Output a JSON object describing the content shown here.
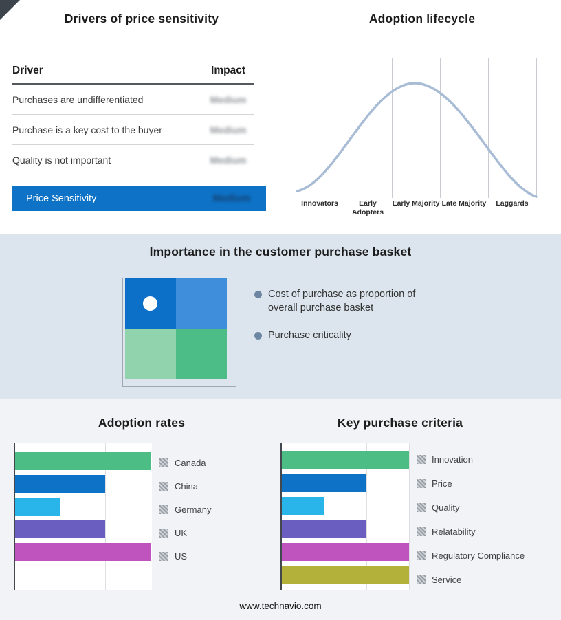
{
  "price_sensitivity": {
    "title": "Drivers of price sensitivity",
    "columns": {
      "driver": "Driver",
      "impact": "Impact"
    },
    "rows": [
      {
        "driver": "Purchases are undifferentiated",
        "impact": "Medium"
      },
      {
        "driver": "Purchase is a key cost to the buyer",
        "impact": "Medium"
      },
      {
        "driver": "Quality is not important",
        "impact": "Medium"
      }
    ],
    "summary_row": {
      "label": "Price Sensitivity",
      "impact": "Medium"
    },
    "highlight_color": "#0E72C6",
    "impact_values_blurred": true
  },
  "purchase_basket": {
    "title": "Importance in the customer purchase basket",
    "bullets": [
      "Cost of purchase as proportion of overall purchase basket",
      "Purchase criticality"
    ],
    "quadrant_colors": [
      "#0C70C8",
      "#3F8EDB",
      "#90D3AC",
      "#4CBD86"
    ],
    "band_color": "#DCE5EE"
  },
  "chart_data": [
    {
      "name": "adoption-lifecycle",
      "type": "line",
      "title": "Adoption lifecycle",
      "categories": [
        "Innovators",
        "Early Adopters",
        "Early Majority",
        "Late Majority",
        "Laggards"
      ],
      "description": "Bell-shaped adoption curve peaking over the Early Majority stage; vertical gridlines separate the five stages; no numeric axes",
      "curve_color": "#A9BCD6",
      "grid": true,
      "legend": "none"
    },
    {
      "name": "adoption-rates",
      "type": "bar",
      "orientation": "horizontal",
      "title": "Adoption rates",
      "categories": [
        "Canada",
        "China",
        "Germany",
        "UK",
        "US"
      ],
      "values": [
        3,
        2,
        1,
        2,
        3
      ],
      "xlim": [
        0,
        3
      ],
      "axis_tick_labels": "none (unlabeled relative scale, gridlines at 1, 2, 3 units)",
      "colors": [
        "#4BBD85",
        "#0E72C6",
        "#29B4EA",
        "#6A5EC0",
        "#BF54BE"
      ],
      "legend_position": "right",
      "grid": true
    },
    {
      "name": "key-purchase-criteria",
      "type": "bar",
      "orientation": "horizontal",
      "title": "Key purchase criteria",
      "categories": [
        "Innovation",
        "Price",
        "Quality",
        "Relatability",
        "Regulatory Compliance",
        "Service"
      ],
      "values": [
        3,
        2,
        1,
        2,
        3,
        3
      ],
      "xlim": [
        0,
        3
      ],
      "axis_tick_labels": "none (unlabeled relative scale, gridlines at 1, 2, 3 units)",
      "colors": [
        "#4BBD85",
        "#0E72C6",
        "#29B4EA",
        "#6A5EC0",
        "#BF54BE",
        "#B4B13B"
      ],
      "legend_position": "right",
      "grid": true
    }
  ],
  "footer": {
    "text": "www.technavio.com"
  }
}
